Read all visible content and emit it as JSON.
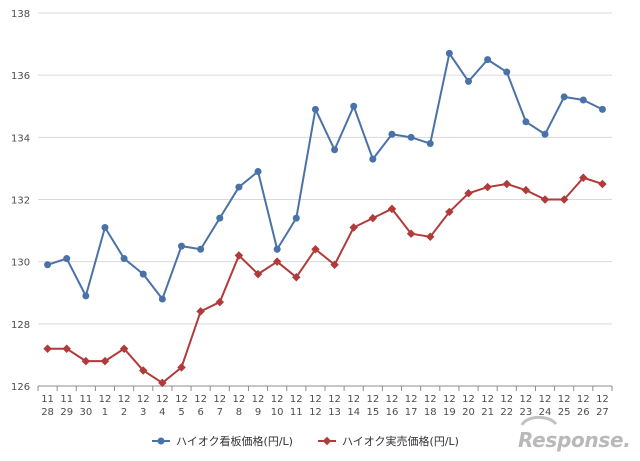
{
  "chart_data": {
    "type": "line",
    "x_dates": [
      [
        "11",
        "28"
      ],
      [
        "11",
        "29"
      ],
      [
        "11",
        "30"
      ],
      [
        "12",
        "1"
      ],
      [
        "12",
        "2"
      ],
      [
        "12",
        "3"
      ],
      [
        "12",
        "4"
      ],
      [
        "12",
        "5"
      ],
      [
        "12",
        "6"
      ],
      [
        "12",
        "7"
      ],
      [
        "12",
        "8"
      ],
      [
        "12",
        "9"
      ],
      [
        "12",
        "10"
      ],
      [
        "12",
        "11"
      ],
      [
        "12",
        "12"
      ],
      [
        "12",
        "13"
      ],
      [
        "12",
        "14"
      ],
      [
        "12",
        "15"
      ],
      [
        "12",
        "16"
      ],
      [
        "12",
        "17"
      ],
      [
        "12",
        "18"
      ],
      [
        "12",
        "19"
      ],
      [
        "12",
        "20"
      ],
      [
        "12",
        "21"
      ],
      [
        "12",
        "22"
      ],
      [
        "12",
        "23"
      ],
      [
        "12",
        "24"
      ],
      [
        "12",
        "25"
      ],
      [
        "12",
        "26"
      ],
      [
        "12",
        "27"
      ]
    ],
    "series": [
      {
        "name": "ハイオク看板価格(円/L)",
        "color": "#4a72a8",
        "marker": "circle",
        "values": [
          129.9,
          130.1,
          128.9,
          131.1,
          130.1,
          129.6,
          128.8,
          130.5,
          130.4,
          131.4,
          132.4,
          132.9,
          130.4,
          131.4,
          134.9,
          133.6,
          135.0,
          133.3,
          134.1,
          134.0,
          133.8,
          136.7,
          135.8,
          136.5,
          136.1,
          134.5,
          134.1,
          135.3,
          135.2,
          134.9
        ]
      },
      {
        "name": "ハイオク実売価格(円/L)",
        "color": "#b13a3a",
        "marker": "diamond",
        "values": [
          127.2,
          127.2,
          126.8,
          126.8,
          127.2,
          126.5,
          126.1,
          126.6,
          128.4,
          128.7,
          130.2,
          129.6,
          130.0,
          129.5,
          130.4,
          129.9,
          131.1,
          131.4,
          131.7,
          130.9,
          130.8,
          131.6,
          132.2,
          132.4,
          132.5,
          132.3,
          132.0,
          132.0,
          132.7,
          132.5
        ]
      }
    ],
    "ylim": [
      126,
      138
    ],
    "y_ticks": [
      126,
      128,
      130,
      132,
      134,
      136,
      138
    ],
    "grid": true,
    "legend": "bottom-center"
  },
  "watermark": "Response."
}
